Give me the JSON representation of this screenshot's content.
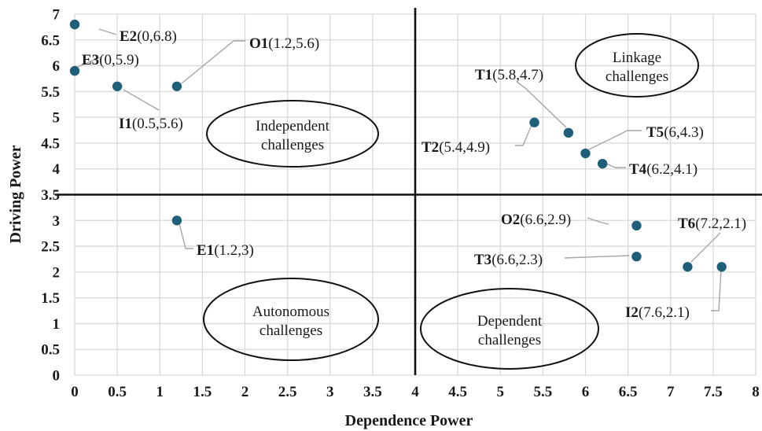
{
  "chart_data": {
    "type": "scatter",
    "xlabel": "Dependence Power",
    "ylabel": "Driving Power",
    "xlim": [
      0,
      8
    ],
    "ylim": [
      0,
      7
    ],
    "x_ticks": [
      "0",
      "0.5",
      "1",
      "1.5",
      "2",
      "2.5",
      "3",
      "3.5",
      "4",
      "4.5",
      "5",
      "5.5",
      "6",
      "6.5",
      "7",
      "7.5",
      "8"
    ],
    "y_ticks": [
      "0",
      "0.5",
      "1",
      "1.5",
      "2",
      "2.5",
      "3",
      "3.5",
      "4",
      "4.5",
      "5",
      "5.5",
      "6",
      "6.5",
      "7"
    ],
    "grid": true,
    "quadrant_split": {
      "x": 4,
      "y": 3.5
    },
    "point_color": "#1f5f7a",
    "points": [
      {
        "id": "E2",
        "coords": "(0,6.8)",
        "x": 0,
        "y": 6.8
      },
      {
        "id": "E3",
        "coords": "(0,5.9)",
        "x": 0,
        "y": 5.9
      },
      {
        "id": "O1",
        "coords": "(1.2,5.6)",
        "x": 1.2,
        "y": 5.6
      },
      {
        "id": "I1",
        "coords": "(0.5,5.6)",
        "x": 0.5,
        "y": 5.6
      },
      {
        "id": "E1",
        "coords": "(1.2,3)",
        "x": 1.2,
        "y": 3
      },
      {
        "id": "T1",
        "coords": "(5.8,4.7)",
        "x": 5.8,
        "y": 4.7
      },
      {
        "id": "T2",
        "coords": "(5.4,4.9)",
        "x": 5.4,
        "y": 4.9
      },
      {
        "id": "T5",
        "coords": "(6,4.3)",
        "x": 6,
        "y": 4.3
      },
      {
        "id": "T4",
        "coords": "(6.2,4.1)",
        "x": 6.2,
        "y": 4.1
      },
      {
        "id": "O2",
        "coords": "(6.6,2.9)",
        "x": 6.6,
        "y": 2.9
      },
      {
        "id": "T3",
        "coords": "(6.6,2.3)",
        "x": 6.6,
        "y": 2.3
      },
      {
        "id": "T6",
        "coords": "(7.2,2.1)",
        "x": 7.2,
        "y": 2.1
      },
      {
        "id": "I2",
        "coords": "(7.6,2.1)",
        "x": 7.6,
        "y": 2.1
      }
    ],
    "regions": [
      {
        "key": "independent",
        "lines": [
          "Independent",
          "challenges"
        ]
      },
      {
        "key": "linkage",
        "lines": [
          "Linkage",
          "challenges"
        ]
      },
      {
        "key": "autonomous",
        "lines": [
          "Autonomous",
          "challenges"
        ]
      },
      {
        "key": "dependent",
        "lines": [
          "Dependent",
          "challenges"
        ]
      }
    ]
  }
}
